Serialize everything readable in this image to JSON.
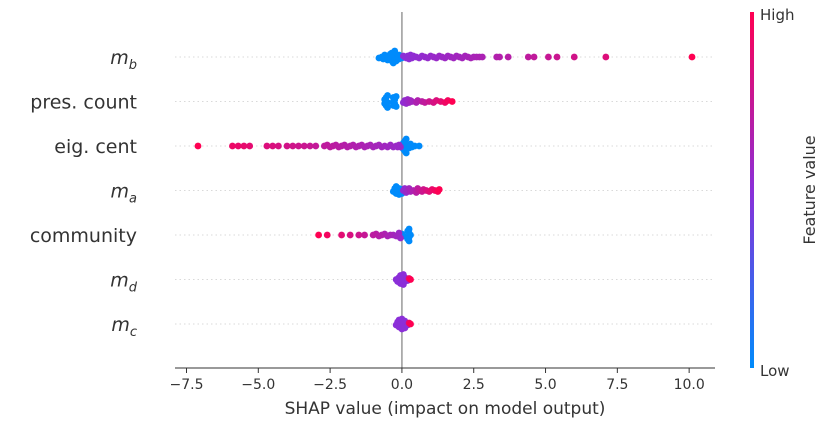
{
  "chart_data": {
    "type": "scatter",
    "subtype": "shap-beeswarm",
    "xlabel": "SHAP value (impact on model output)",
    "xlim": [
      -7.9,
      10.9
    ],
    "x_ticks": [
      -7.5,
      -5.0,
      -2.5,
      0.0,
      2.5,
      5.0,
      7.5,
      10.0
    ],
    "x_tick_labels": [
      "−7.5",
      "−5.0",
      "−2.5",
      "0.0",
      "2.5",
      "5.0",
      "7.5",
      "10.0"
    ],
    "features": [
      {
        "name": "m",
        "sub": "b",
        "italic": true
      },
      {
        "name": "pres. count",
        "sub": "",
        "italic": false
      },
      {
        "name": "eig. cent",
        "sub": "",
        "italic": false
      },
      {
        "name": "m",
        "sub": "a",
        "italic": true
      },
      {
        "name": "community",
        "sub": "",
        "italic": false
      },
      {
        "name": "m",
        "sub": "d",
        "italic": true
      },
      {
        "name": "m",
        "sub": "c",
        "italic": true
      }
    ],
    "colorbar": {
      "label": "Feature value",
      "high_label": "High",
      "low_label": "Low",
      "high_color": "#ff0052",
      "low_color": "#008bfb",
      "mid_color": "#8b2fd8"
    },
    "series": [
      {
        "feature": "m_b",
        "points": [
          [
            -0.8,
            0.05
          ],
          [
            -0.7,
            0.0
          ],
          [
            -0.65,
            0.1
          ],
          [
            -0.6,
            -0.1
          ],
          [
            -0.55,
            0.05
          ],
          [
            -0.5,
            -0.05
          ],
          [
            -0.5,
            0.15
          ],
          [
            -0.45,
            0.0
          ],
          [
            -0.4,
            -0.15
          ],
          [
            -0.4,
            0.1
          ],
          [
            -0.35,
            0.2
          ],
          [
            -0.35,
            -0.2
          ],
          [
            -0.3,
            0.0
          ],
          [
            -0.3,
            0.3
          ],
          [
            -0.25,
            -0.3
          ],
          [
            -0.25,
            0.1
          ],
          [
            -0.2,
            -0.05
          ],
          [
            -0.2,
            0.2
          ],
          [
            -0.15,
            0.0
          ],
          [
            -0.1,
            -0.1
          ],
          [
            -0.1,
            0.1
          ],
          [
            -0.05,
            0.0
          ],
          [
            0.0,
            0.05
          ],
          [
            0.05,
            -0.05
          ],
          [
            0.1,
            0.0
          ],
          [
            0.15,
            0.05
          ],
          [
            0.2,
            -0.05
          ],
          [
            0.25,
            0.1
          ],
          [
            0.3,
            -0.1
          ],
          [
            0.35,
            0.05
          ],
          [
            0.4,
            -0.05
          ],
          [
            0.5,
            0.0
          ],
          [
            0.6,
            0.05
          ],
          [
            0.7,
            -0.05
          ],
          [
            0.8,
            0.0
          ],
          [
            0.9,
            0.05
          ],
          [
            1.0,
            -0.05
          ],
          [
            1.1,
            0.0
          ],
          [
            1.2,
            0.05
          ],
          [
            1.3,
            -0.05
          ],
          [
            1.4,
            0.0
          ],
          [
            1.5,
            0.05
          ],
          [
            1.6,
            -0.05
          ],
          [
            1.7,
            0.0
          ],
          [
            1.8,
            0.05
          ],
          [
            1.9,
            -0.05
          ],
          [
            2.0,
            0.0
          ],
          [
            2.1,
            0.05
          ],
          [
            2.2,
            -0.05
          ],
          [
            2.3,
            0.0
          ],
          [
            2.4,
            0.05
          ],
          [
            2.5,
            0.0
          ],
          [
            2.6,
            0.0
          ],
          [
            2.7,
            0.0
          ],
          [
            2.8,
            0.0
          ],
          [
            3.3,
            0.0
          ],
          [
            3.4,
            0.0
          ],
          [
            3.7,
            0.0
          ],
          [
            4.4,
            0.0
          ],
          [
            4.6,
            0.0
          ],
          [
            5.1,
            0.0
          ],
          [
            5.4,
            0.0
          ],
          [
            6.0,
            0.0
          ],
          [
            7.1,
            0.0
          ],
          [
            10.1,
            0.0
          ]
        ]
      },
      {
        "feature": "pres. count",
        "points": [
          [
            -0.6,
            0.1
          ],
          [
            -0.6,
            -0.1
          ],
          [
            -0.55,
            0.2
          ],
          [
            -0.55,
            -0.2
          ],
          [
            -0.55,
            0.0
          ],
          [
            -0.5,
            0.3
          ],
          [
            -0.5,
            -0.3
          ],
          [
            -0.5,
            0.05
          ],
          [
            -0.3,
            0.2
          ],
          [
            -0.3,
            -0.2
          ],
          [
            -0.3,
            0.0
          ],
          [
            -0.25,
            0.1
          ],
          [
            -0.25,
            -0.1
          ],
          [
            -0.2,
            0.25
          ],
          [
            -0.2,
            -0.25
          ],
          [
            0.05,
            0.05
          ],
          [
            0.1,
            -0.05
          ],
          [
            0.15,
            0.1
          ],
          [
            0.2,
            -0.1
          ],
          [
            0.25,
            0.05
          ],
          [
            0.3,
            -0.05
          ],
          [
            0.35,
            0.0
          ],
          [
            0.5,
            0.05
          ],
          [
            0.55,
            -0.05
          ],
          [
            0.7,
            0.0
          ],
          [
            0.8,
            0.05
          ],
          [
            0.95,
            0.0
          ],
          [
            1.1,
            0.05
          ],
          [
            1.2,
            -0.05
          ],
          [
            1.35,
            0.0
          ],
          [
            1.5,
            0.05
          ],
          [
            1.6,
            -0.05
          ],
          [
            1.75,
            0.0
          ]
        ]
      },
      {
        "feature": "eig. cent",
        "points": [
          [
            0.0,
            0.05
          ],
          [
            0.0,
            -0.05
          ],
          [
            0.05,
            0.15
          ],
          [
            0.05,
            -0.15
          ],
          [
            0.1,
            0.25
          ],
          [
            0.1,
            -0.25
          ],
          [
            0.15,
            0.35
          ],
          [
            0.15,
            -0.35
          ],
          [
            0.2,
            0.0
          ],
          [
            0.25,
            0.1
          ],
          [
            0.3,
            -0.1
          ],
          [
            0.35,
            0.05
          ],
          [
            0.45,
            0.0
          ],
          [
            0.6,
            0.0
          ],
          [
            -0.05,
            0.05
          ],
          [
            -0.1,
            -0.05
          ],
          [
            -0.15,
            0.05
          ],
          [
            -0.2,
            0.0
          ],
          [
            -0.3,
            0.05
          ],
          [
            -0.4,
            -0.05
          ],
          [
            -0.5,
            0.05
          ],
          [
            -0.6,
            0.0
          ],
          [
            -0.7,
            0.05
          ],
          [
            -0.8,
            -0.05
          ],
          [
            -0.9,
            0.0
          ],
          [
            -1.0,
            0.05
          ],
          [
            -1.1,
            -0.05
          ],
          [
            -1.2,
            0.0
          ],
          [
            -1.3,
            0.05
          ],
          [
            -1.4,
            -0.05
          ],
          [
            -1.5,
            0.0
          ],
          [
            -1.6,
            0.05
          ],
          [
            -1.7,
            -0.05
          ],
          [
            -1.8,
            0.0
          ],
          [
            -1.9,
            0.05
          ],
          [
            -2.0,
            -0.05
          ],
          [
            -2.1,
            0.0
          ],
          [
            -2.2,
            0.05
          ],
          [
            -2.3,
            -0.05
          ],
          [
            -2.4,
            0.0
          ],
          [
            -2.5,
            0.05
          ],
          [
            -2.6,
            -0.05
          ],
          [
            -2.7,
            0.0
          ],
          [
            -3.0,
            0.0
          ],
          [
            -3.2,
            0.0
          ],
          [
            -3.4,
            0.0
          ],
          [
            -3.6,
            0.0
          ],
          [
            -3.8,
            0.0
          ],
          [
            -4.0,
            0.0
          ],
          [
            -4.3,
            0.0
          ],
          [
            -4.5,
            0.0
          ],
          [
            -4.7,
            0.0
          ],
          [
            -5.3,
            0.0
          ],
          [
            -5.5,
            0.0
          ],
          [
            -5.7,
            0.0
          ],
          [
            -5.9,
            0.0
          ],
          [
            -7.1,
            0.0
          ]
        ]
      },
      {
        "feature": "m_a",
        "points": [
          [
            -0.3,
            0.05
          ],
          [
            -0.25,
            -0.1
          ],
          [
            -0.2,
            0.15
          ],
          [
            -0.2,
            -0.2
          ],
          [
            -0.15,
            0.0
          ],
          [
            -0.1,
            0.2
          ],
          [
            -0.1,
            -0.1
          ],
          [
            -0.05,
            0.1
          ],
          [
            0.0,
            -0.05
          ],
          [
            0.0,
            0.15
          ],
          [
            0.05,
            0.0
          ],
          [
            0.1,
            -0.1
          ],
          [
            0.15,
            0.1
          ],
          [
            0.2,
            0.0
          ],
          [
            0.25,
            -0.1
          ],
          [
            0.3,
            0.05
          ],
          [
            0.4,
            0.0
          ],
          [
            0.5,
            0.1
          ],
          [
            0.55,
            -0.1
          ],
          [
            0.6,
            0.0
          ],
          [
            0.7,
            0.05
          ],
          [
            0.75,
            -0.05
          ],
          [
            0.85,
            0.0
          ],
          [
            0.95,
            0.05
          ],
          [
            1.05,
            -0.05
          ],
          [
            1.15,
            0.0
          ],
          [
            1.25,
            0.05
          ],
          [
            1.3,
            -0.05
          ]
        ]
      },
      {
        "feature": "community",
        "points": [
          [
            0.2,
            0.2
          ],
          [
            0.2,
            -0.2
          ],
          [
            0.25,
            0.1
          ],
          [
            0.25,
            -0.1
          ],
          [
            0.25,
            0.3
          ],
          [
            0.25,
            -0.3
          ],
          [
            0.3,
            0.0
          ],
          [
            0.05,
            0.05
          ],
          [
            0.0,
            -0.05
          ],
          [
            -0.05,
            0.15
          ],
          [
            -0.1,
            -0.1
          ],
          [
            -0.2,
            0.05
          ],
          [
            -0.3,
            0.0
          ],
          [
            -0.4,
            0.0
          ],
          [
            -0.5,
            0.05
          ],
          [
            -0.6,
            -0.05
          ],
          [
            -0.7,
            0.0
          ],
          [
            -0.8,
            0.05
          ],
          [
            -0.9,
            -0.05
          ],
          [
            -1.0,
            0.0
          ],
          [
            -1.3,
            0.0
          ],
          [
            -1.5,
            0.0
          ],
          [
            -1.8,
            0.0
          ],
          [
            -2.1,
            0.0
          ],
          [
            -2.6,
            0.0
          ],
          [
            -2.9,
            0.0
          ]
        ]
      },
      {
        "feature": "m_d",
        "points": [
          [
            -0.15,
            0.1
          ],
          [
            -0.1,
            -0.1
          ],
          [
            -0.05,
            0.2
          ],
          [
            -0.05,
            -0.2
          ],
          [
            0.0,
            0.05
          ],
          [
            0.0,
            -0.05
          ],
          [
            0.05,
            0.25
          ],
          [
            0.05,
            -0.25
          ],
          [
            0.1,
            0.1
          ],
          [
            0.1,
            -0.1
          ],
          [
            -0.2,
            0.0
          ],
          [
            0.15,
            0.0
          ],
          [
            0.2,
            0.05
          ],
          [
            0.25,
            -0.05
          ],
          [
            0.3,
            0.0
          ]
        ]
      },
      {
        "feature": "m_c",
        "points": [
          [
            -0.2,
            0.05
          ],
          [
            -0.15,
            -0.1
          ],
          [
            -0.1,
            0.15
          ],
          [
            -0.1,
            -0.2
          ],
          [
            -0.05,
            0.0
          ],
          [
            0.0,
            0.25
          ],
          [
            0.0,
            -0.25
          ],
          [
            0.05,
            0.1
          ],
          [
            0.05,
            -0.1
          ],
          [
            0.1,
            0.2
          ],
          [
            0.1,
            -0.15
          ],
          [
            0.15,
            0.0
          ],
          [
            0.2,
            0.05
          ],
          [
            0.25,
            -0.05
          ],
          [
            0.3,
            0.0
          ]
        ]
      }
    ]
  }
}
